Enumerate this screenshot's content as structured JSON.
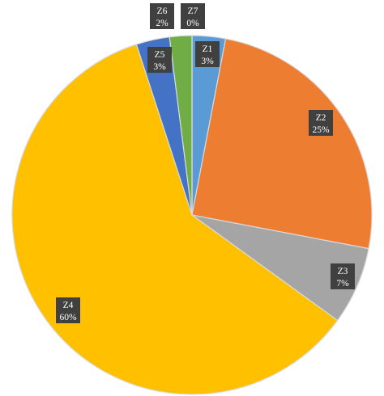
{
  "chart_data": {
    "type": "pie",
    "title": "",
    "legend": "none",
    "start_angle_deg": 0,
    "direction": "clockwise",
    "slices": [
      {
        "label": "Z1",
        "value": 3,
        "display": "3%",
        "color": "#5B9BD5"
      },
      {
        "label": "Z2",
        "value": 25,
        "display": "25%",
        "color": "#ED7D31"
      },
      {
        "label": "Z3",
        "value": 7,
        "display": "7%",
        "color": "#A5A5A5"
      },
      {
        "label": "Z4",
        "value": 60,
        "display": "60%",
        "color": "#FFC000"
      },
      {
        "label": "Z5",
        "value": 3,
        "display": "3%",
        "color": "#4472C4"
      },
      {
        "label": "Z6",
        "value": 2,
        "display": "2%",
        "color": "#70AD47"
      },
      {
        "label": "Z7",
        "value": 0,
        "display": "0%",
        "color": "#255E91"
      }
    ]
  }
}
